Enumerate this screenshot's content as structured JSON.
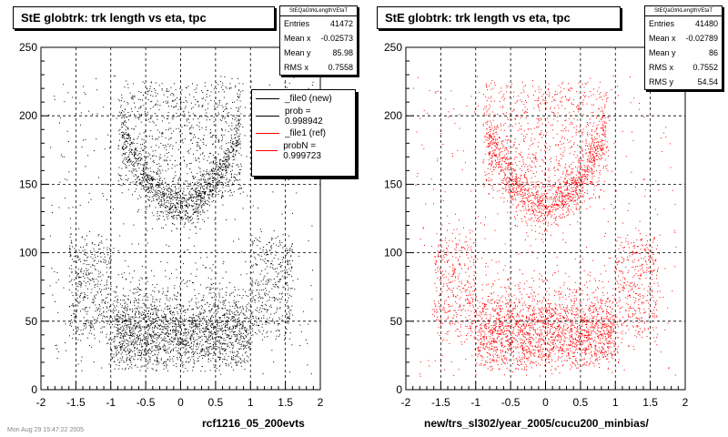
{
  "colors": {
    "left_markers": "#000000",
    "right_markers": "#ff0000",
    "frame": "#000000",
    "grid": "#000000"
  },
  "chart_data": [
    {
      "type": "scatter",
      "title": "StE globtrk: trk length vs eta, tpc",
      "xlabel": "rcf1216_05_200evts",
      "ylabel": "",
      "xlim": [
        -2,
        2
      ],
      "ylim": [
        0,
        250
      ],
      "x_ticks": [
        "-2",
        "-1.5",
        "-1",
        "-0.5",
        "0",
        "0.5",
        "1",
        "1.5",
        "2"
      ],
      "y_ticks": [
        "0",
        "50",
        "100",
        "150",
        "200",
        "250"
      ],
      "grid": true,
      "marker_color": "#000000",
      "stats": {
        "name": "StEQaGtrkLengthVEtaT",
        "rows": [
          {
            "label": "Entries",
            "value": "41472"
          },
          {
            "label": "Mean x",
            "value": "-0.02573"
          },
          {
            "label": "Mean y",
            "value": "85.98"
          },
          {
            "label": "RMS x",
            "value": "0.7558"
          }
        ]
      },
      "legend": {
        "placement": "top-right",
        "entries": [
          {
            "label": "_file0 (new)",
            "color": "#000000"
          },
          {
            "label": "prob = 0.998942",
            "color": "#000000"
          },
          {
            "label": "_file1 (ref)",
            "color": "#ff0000"
          },
          {
            "label": "probN = 0.999723",
            "color": "#ff0000"
          }
        ]
      },
      "density_model": {
        "description": "2D distribution of track length vs pseudorapidity; entries shown as dots",
        "entries": 41472,
        "mean_x": -0.02573,
        "mean_y": 85.98,
        "rms_x": 0.7558,
        "x_range": [
          -1.9,
          1.9
        ],
        "y_range": [
          10,
          230
        ],
        "features": [
          {
            "name": "central arc",
            "eta_center": 0,
            "length_at_center": 135,
            "length_at_eta_0.8": 185
          },
          {
            "name": "low-length band",
            "eta_range": [
              -1,
              1
            ],
            "length_range": [
              10,
              60
            ]
          },
          {
            "name": "side lobes",
            "eta_abs_range": [
              1,
              1.6
            ],
            "length_range": [
              40,
              110
            ]
          }
        ]
      }
    },
    {
      "type": "scatter",
      "title": "StE globtrk: trk length vs eta, tpc",
      "xlabel": "new/trs_sl302/year_2005/cucu200_minbias/",
      "ylabel": "",
      "xlim": [
        -2,
        2
      ],
      "ylim": [
        0,
        250
      ],
      "x_ticks": [
        "-2",
        "-1.5",
        "-1",
        "-0.5",
        "0",
        "0.5",
        "1",
        "1.5",
        "2"
      ],
      "y_ticks": [
        "0",
        "50",
        "100",
        "150",
        "200",
        "250"
      ],
      "grid": true,
      "marker_color": "#ff0000",
      "stats": {
        "name": "StEQaGtrkLengthVEtaT",
        "rows": [
          {
            "label": "Entries",
            "value": "41480"
          },
          {
            "label": "Mean x",
            "value": "-0.02789"
          },
          {
            "label": "Mean y",
            "value": "86"
          },
          {
            "label": "RMS x",
            "value": "0.7552"
          },
          {
            "label": "RMS y",
            "value": "54.54"
          }
        ]
      },
      "density_model": {
        "description": "2D distribution of track length vs pseudorapidity; entries shown as dots",
        "entries": 41480,
        "mean_x": -0.02789,
        "mean_y": 86,
        "rms_x": 0.7552,
        "rms_y": 54.54,
        "x_range": [
          -1.9,
          1.9
        ],
        "y_range": [
          10,
          230
        ]
      }
    }
  ],
  "footer": {
    "timestamp": "Mon Aug 29 15:47:22 2005"
  }
}
